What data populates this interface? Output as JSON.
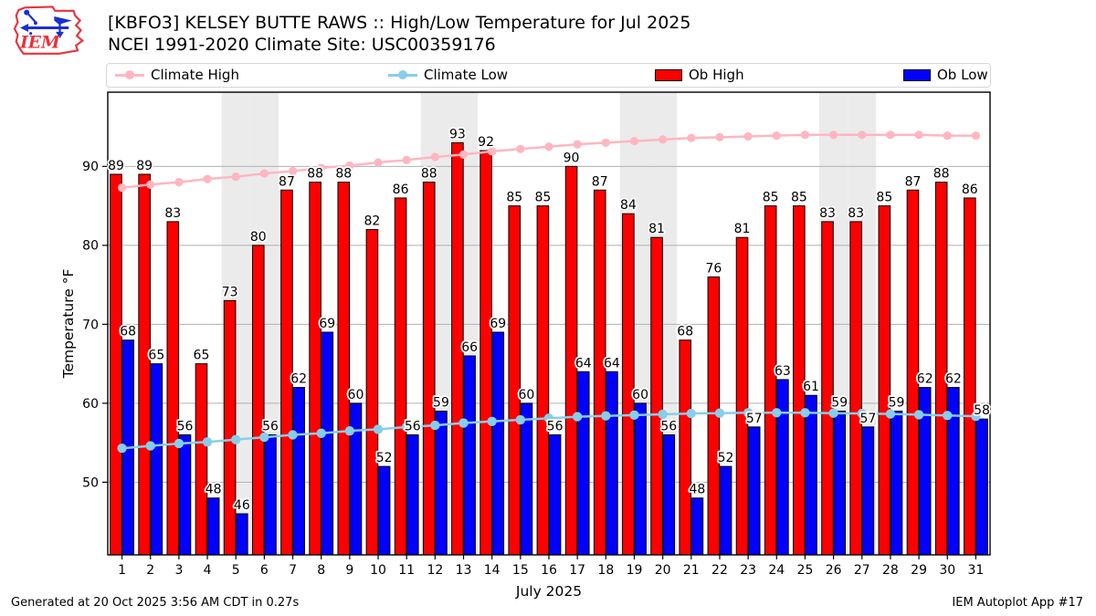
{
  "header": {
    "title_line1": "[KBFO3] KELSEY BUTTE RAWS :: High/Low Temperature for Jul 2025",
    "title_line2": "NCEI 1991-2020 Climate Site: USC00359176",
    "logo_text": "IEM"
  },
  "legend": {
    "items": [
      {
        "label": "Climate High",
        "type": "line",
        "color": "#ffb6c1"
      },
      {
        "label": "Climate Low",
        "type": "line",
        "color": "#87ceeb"
      },
      {
        "label": "Ob High",
        "type": "patch",
        "color": "#ff0000"
      },
      {
        "label": "Ob Low",
        "type": "patch",
        "color": "#0000ff"
      }
    ]
  },
  "footer": {
    "left": "Generated at 20 Oct 2025 3:56 AM CDT in 0.27s",
    "right": "IEM Autoplot App #17"
  },
  "chart_data": {
    "type": "bar",
    "title": "[KBFO3] KELSEY BUTTE RAWS :: High/Low Temperature for Jul 2025",
    "subtitle": "NCEI 1991-2020 Climate Site: USC00359176",
    "xlabel": "July 2025",
    "ylabel": "Temperature °F",
    "x": [
      1,
      2,
      3,
      4,
      5,
      6,
      7,
      8,
      9,
      10,
      11,
      12,
      13,
      14,
      15,
      16,
      17,
      18,
      19,
      20,
      21,
      22,
      23,
      24,
      25,
      26,
      27,
      28,
      29,
      30,
      31
    ],
    "yticks": [
      50,
      60,
      70,
      80,
      90
    ],
    "ylim": [
      40.8,
      99.4
    ],
    "grid": "horizontal",
    "legend_position": "top",
    "weekend_shaded_days": [
      5,
      6,
      12,
      13,
      19,
      20,
      26,
      27
    ],
    "series": [
      {
        "name": "Ob High",
        "type": "bar",
        "color": "#ff0000",
        "values": [
          89,
          89,
          83,
          65,
          73,
          80,
          87,
          88,
          88,
          82,
          86,
          88,
          93,
          92,
          85,
          85,
          90,
          87,
          84,
          81,
          68,
          76,
          81,
          85,
          85,
          83,
          83,
          85,
          87,
          88,
          86
        ]
      },
      {
        "name": "Ob Low",
        "type": "bar",
        "color": "#0000ff",
        "values": [
          68,
          65,
          56,
          48,
          46,
          56,
          62,
          69,
          60,
          52,
          56,
          59,
          66,
          69,
          60,
          56,
          64,
          64,
          60,
          56,
          48,
          52,
          57,
          63,
          61,
          59,
          57,
          59,
          62,
          62,
          58
        ]
      },
      {
        "name": "Climate High",
        "type": "line",
        "color": "#ffb6c1",
        "values": [
          87.3,
          87.7,
          88.0,
          88.4,
          88.7,
          89.1,
          89.4,
          89.8,
          90.1,
          90.5,
          90.8,
          91.2,
          91.5,
          91.9,
          92.2,
          92.5,
          92.8,
          93.0,
          93.2,
          93.4,
          93.6,
          93.7,
          93.8,
          93.9,
          94.0,
          94.0,
          94.0,
          94.0,
          94.0,
          93.9,
          93.9
        ]
      },
      {
        "name": "Climate Low",
        "type": "line",
        "color": "#87ceeb",
        "values": [
          54.3,
          54.6,
          54.9,
          55.1,
          55.4,
          55.7,
          56.0,
          56.2,
          56.5,
          56.7,
          57.0,
          57.2,
          57.5,
          57.7,
          57.9,
          58.1,
          58.3,
          58.4,
          58.5,
          58.6,
          58.7,
          58.75,
          58.8,
          58.8,
          58.8,
          58.75,
          58.7,
          58.65,
          58.55,
          58.45,
          58.35
        ]
      }
    ],
    "colors": {
      "grid": "#b0b0b0",
      "weekend_band": "#ebebeb",
      "bar_edge": "#000000",
      "spine": "#000000"
    }
  }
}
